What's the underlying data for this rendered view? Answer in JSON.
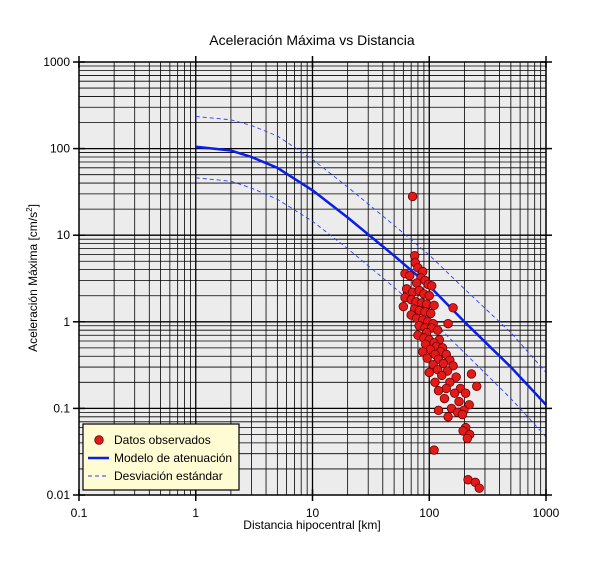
{
  "chart_data": {
    "type": "scatter",
    "title": "Aceleración Máxima vs Distancia",
    "xlabel": "Distancia hipocentral [km]",
    "ylabel": "Aceleración Máxima [cm/s",
    "ylabel_sup": "2",
    "ylabel_end": "]",
    "x_scale": "log",
    "y_scale": "log",
    "xlim": [
      0.1,
      1000
    ],
    "ylim": [
      0.01,
      1000
    ],
    "x_ticks": [
      {
        "value": 0.1,
        "label": "0.1"
      },
      {
        "value": 1,
        "label": "1"
      },
      {
        "value": 10,
        "label": "10"
      },
      {
        "value": 100,
        "label": "100"
      },
      {
        "value": 1000,
        "label": "1000"
      }
    ],
    "y_ticks": [
      {
        "value": 0.01,
        "label": "0.01"
      },
      {
        "value": 0.1,
        "label": "0.1"
      },
      {
        "value": 1,
        "label": "1"
      },
      {
        "value": 10,
        "label": "10"
      },
      {
        "value": 100,
        "label": "100"
      },
      {
        "value": 1000,
        "label": "1000"
      }
    ],
    "grid": true,
    "legend_position": "bottom-left",
    "colors": {
      "plot_background": "#ececec",
      "grid": "#000000",
      "points_fill": "#e41a1a",
      "points_stroke": "#6a0000",
      "model_line": "#0a1ee6",
      "std_line": "#2b3cff",
      "legend_background": "#fffbd2"
    },
    "series": [
      {
        "name": "Datos observados",
        "kind": "scatter",
        "points": [
          [
            72,
            28
          ],
          [
            75,
            5.8
          ],
          [
            76,
            4.8
          ],
          [
            80,
            4.2
          ],
          [
            88,
            3.8
          ],
          [
            62,
            3.6
          ],
          [
            68,
            3.4
          ],
          [
            85,
            3.2
          ],
          [
            92,
            3.0
          ],
          [
            78,
            2.8
          ],
          [
            98,
            2.7
          ],
          [
            105,
            2.6
          ],
          [
            64,
            2.4
          ],
          [
            72,
            2.2
          ],
          [
            82,
            2.3
          ],
          [
            90,
            2.1
          ],
          [
            100,
            2.0
          ],
          [
            62,
            1.9
          ],
          [
            70,
            1.8
          ],
          [
            77,
            1.7
          ],
          [
            86,
            1.65
          ],
          [
            95,
            1.6
          ],
          [
            110,
            1.55
          ],
          [
            60,
            1.5
          ],
          [
            75,
            1.4
          ],
          [
            82,
            1.35
          ],
          [
            92,
            1.3
          ],
          [
            103,
            1.25
          ],
          [
            160,
            1.45
          ],
          [
            70,
            1.2
          ],
          [
            78,
            1.1
          ],
          [
            88,
            1.05
          ],
          [
            97,
            1.0
          ],
          [
            108,
            0.95
          ],
          [
            82,
            0.9
          ],
          [
            92,
            0.85
          ],
          [
            105,
            0.85
          ],
          [
            118,
            0.8
          ],
          [
            95,
            0.75
          ],
          [
            145,
            0.95
          ],
          [
            80,
            0.7
          ],
          [
            90,
            0.65
          ],
          [
            100,
            0.62
          ],
          [
            122,
            0.62
          ],
          [
            110,
            0.57
          ],
          [
            93,
            0.55
          ],
          [
            115,
            0.52
          ],
          [
            130,
            0.5
          ],
          [
            102,
            0.48
          ],
          [
            125,
            0.45
          ],
          [
            88,
            0.45
          ],
          [
            112,
            0.42
          ],
          [
            140,
            0.42
          ],
          [
            96,
            0.38
          ],
          [
            120,
            0.37
          ],
          [
            150,
            0.36
          ],
          [
            132,
            0.33
          ],
          [
            108,
            0.32
          ],
          [
            160,
            0.31
          ],
          [
            118,
            0.28
          ],
          [
            143,
            0.27
          ],
          [
            100,
            0.26
          ],
          [
            230,
            0.25
          ],
          [
            128,
            0.24
          ],
          [
            170,
            0.23
          ],
          [
            112,
            0.2
          ],
          [
            150,
            0.2
          ],
          [
            255,
            0.18
          ],
          [
            140,
            0.17
          ],
          [
            185,
            0.17
          ],
          [
            120,
            0.16
          ],
          [
            165,
            0.15
          ],
          [
            205,
            0.15
          ],
          [
            135,
            0.13
          ],
          [
            180,
            0.12
          ],
          [
            220,
            0.11
          ],
          [
            155,
            0.1
          ],
          [
            198,
            0.095
          ],
          [
            120,
            0.095
          ],
          [
            175,
            0.09
          ],
          [
            145,
            0.08
          ],
          [
            192,
            0.085
          ],
          [
            205,
            0.06
          ],
          [
            195,
            0.055
          ],
          [
            222,
            0.05
          ],
          [
            212,
            0.045
          ],
          [
            110,
            0.033
          ],
          [
            215,
            0.015
          ],
          [
            248,
            0.014
          ],
          [
            268,
            0.012
          ]
        ]
      },
      {
        "name": "Modelo de atenuación",
        "kind": "line",
        "points": [
          [
            1,
            105
          ],
          [
            2,
            95
          ],
          [
            3,
            80
          ],
          [
            5,
            60
          ],
          [
            10,
            33
          ],
          [
            20,
            16
          ],
          [
            50,
            5.8
          ],
          [
            100,
            2.6
          ],
          [
            200,
            1.0
          ],
          [
            500,
            0.3
          ],
          [
            1000,
            0.11
          ]
        ]
      },
      {
        "name": "Desviación estándar",
        "kind": "dashed",
        "points": [
          [
            1,
            235
          ],
          [
            2,
            215
          ],
          [
            3,
            185
          ],
          [
            5,
            140
          ],
          [
            10,
            75
          ],
          [
            20,
            36
          ],
          [
            50,
            13
          ],
          [
            100,
            5.9
          ],
          [
            200,
            2.4
          ],
          [
            500,
            0.75
          ],
          [
            1000,
            0.26
          ]
        ]
      },
      {
        "name": "",
        "kind": "dashed",
        "points": [
          [
            1,
            46
          ],
          [
            2,
            42
          ],
          [
            3,
            35
          ],
          [
            5,
            26
          ],
          [
            10,
            14.5
          ],
          [
            20,
            7
          ],
          [
            50,
            2.5
          ],
          [
            100,
            1.1
          ],
          [
            200,
            0.44
          ],
          [
            500,
            0.13
          ],
          [
            1000,
            0.047
          ]
        ]
      }
    ]
  }
}
